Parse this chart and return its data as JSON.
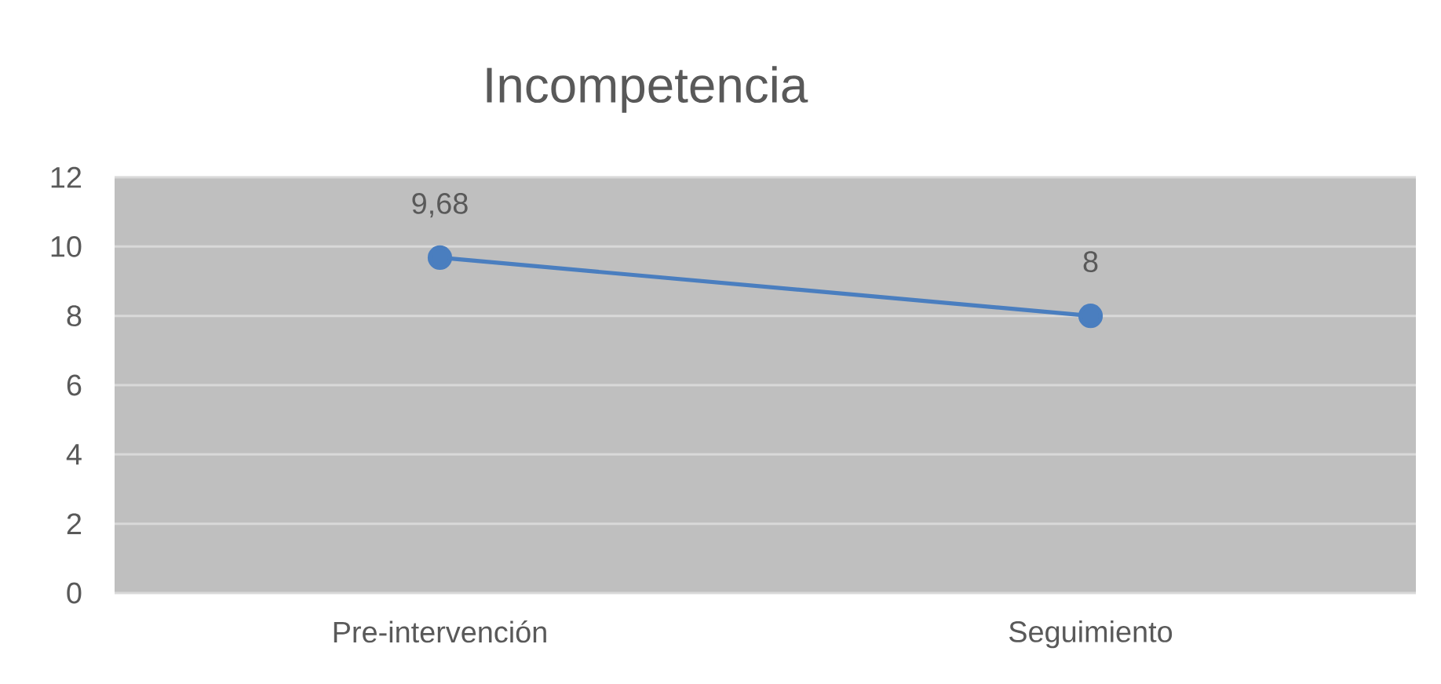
{
  "chart_data": {
    "type": "line",
    "title": "Incompetencia",
    "categories": [
      "Pre-intervención",
      "Seguimiento"
    ],
    "values": [
      9.68,
      8
    ],
    "value_labels": [
      "9,68",
      "8"
    ],
    "color": "#4a7ebf",
    "ylim": [
      0,
      12
    ],
    "yticks": [
      0,
      2,
      4,
      6,
      8,
      10,
      12
    ],
    "grid": "y",
    "marker": "circle",
    "line_style": "solid"
  }
}
